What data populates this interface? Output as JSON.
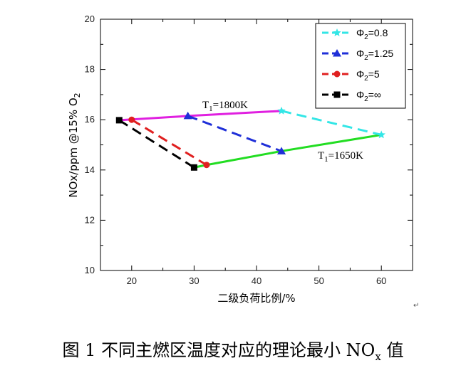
{
  "chart_data": {
    "type": "line",
    "xlabel": "二级负荷比例/%",
    "ylabel": "NOx/ppm @15% O",
    "ylabel_sub": "2",
    "xlim": [
      15,
      65
    ],
    "ylim": [
      10,
      20
    ],
    "xticks": [
      20,
      30,
      40,
      50,
      60
    ],
    "yticks": [
      10,
      12,
      14,
      16,
      18,
      20
    ],
    "series": [
      {
        "name": "Φ2=0.8",
        "name_main": "Φ",
        "name_sub": "2",
        "name_tail": "=0.8",
        "color": "#33e6e6",
        "marker": "star",
        "dash": true,
        "x": [
          44,
          60
        ],
        "y": [
          16.35,
          15.4
        ]
      },
      {
        "name": "Φ2=1.25",
        "name_main": "Φ",
        "name_sub": "2",
        "name_tail": "=1.25",
        "color": "#1f2fd8",
        "marker": "triangle",
        "dash": true,
        "x": [
          29,
          44
        ],
        "y": [
          16.15,
          14.75
        ]
      },
      {
        "name": "Φ2=5",
        "name_main": "Φ",
        "name_sub": "2",
        "name_tail": "=5",
        "color": "#e02020",
        "marker": "circle",
        "dash": true,
        "x": [
          20,
          32
        ],
        "y": [
          16.0,
          14.2
        ]
      },
      {
        "name": "Φ2=∞",
        "name_main": "Φ",
        "name_sub": "2",
        "name_tail": "=∞",
        "color": "#000000",
        "marker": "square",
        "dash": true,
        "x": [
          18,
          30
        ],
        "y": [
          15.98,
          14.1
        ]
      }
    ],
    "isotherms": [
      {
        "label": "T1=1800K",
        "label_main": "T",
        "label_sub": "1",
        "label_tail": "=1800K",
        "color": "#e020e0",
        "x": [
          18,
          29,
          44
        ],
        "y": [
          15.98,
          16.15,
          16.35
        ]
      },
      {
        "label": "T1=1650K",
        "label_main": "T",
        "label_sub": "1",
        "label_tail": "=1650K",
        "color": "#22dd22",
        "x": [
          30,
          32,
          44,
          60
        ],
        "y": [
          14.1,
          14.2,
          14.75,
          15.4
        ]
      }
    ],
    "legend_position": "top-right"
  },
  "caption": {
    "prefix": "图 1  不同主燃区温度对应的理论最小 NO",
    "sub": "x",
    "suffix": " 值"
  },
  "pilcrow": "↵"
}
